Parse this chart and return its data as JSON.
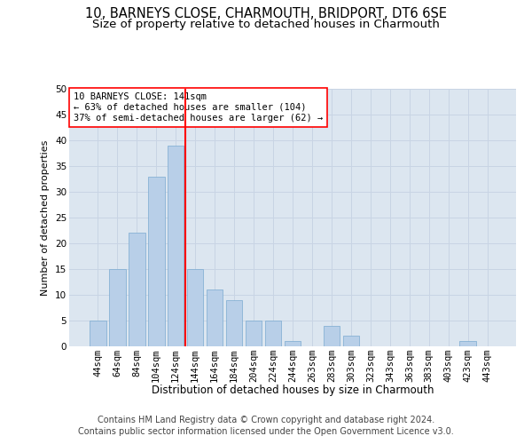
{
  "title_line1": "10, BARNEYS CLOSE, CHARMOUTH, BRIDPORT, DT6 6SE",
  "title_line2": "Size of property relative to detached houses in Charmouth",
  "xlabel": "Distribution of detached houses by size in Charmouth",
  "ylabel": "Number of detached properties",
  "categories": [
    "44sqm",
    "64sqm",
    "84sqm",
    "104sqm",
    "124sqm",
    "144sqm",
    "164sqm",
    "184sqm",
    "204sqm",
    "224sqm",
    "244sqm",
    "263sqm",
    "283sqm",
    "303sqm",
    "323sqm",
    "343sqm",
    "363sqm",
    "383sqm",
    "403sqm",
    "423sqm",
    "443sqm"
  ],
  "values": [
    5,
    15,
    22,
    33,
    39,
    15,
    11,
    9,
    5,
    5,
    1,
    0,
    4,
    2,
    0,
    0,
    0,
    0,
    0,
    1,
    0
  ],
  "bar_color": "#b8cfe8",
  "bar_edge_color": "#7aaad0",
  "bar_edge_width": 0.5,
  "reference_line_x": 4.5,
  "reference_line_color": "red",
  "annotation_text": "10 BARNEYS CLOSE: 141sqm\n← 63% of detached houses are smaller (104)\n37% of semi-detached houses are larger (62) →",
  "annotation_box_color": "white",
  "annotation_box_edge_color": "red",
  "ylim": [
    0,
    50
  ],
  "yticks": [
    0,
    5,
    10,
    15,
    20,
    25,
    30,
    35,
    40,
    45,
    50
  ],
  "grid_color": "#c8d4e4",
  "background_color": "#dce6f0",
  "footer_line1": "Contains HM Land Registry data © Crown copyright and database right 2024.",
  "footer_line2": "Contains public sector information licensed under the Open Government Licence v3.0.",
  "title_fontsize": 10.5,
  "subtitle_fontsize": 9.5,
  "footer_fontsize": 7,
  "axis_label_fontsize": 8,
  "tick_fontsize": 7.5,
  "annotation_fontsize": 7.5
}
